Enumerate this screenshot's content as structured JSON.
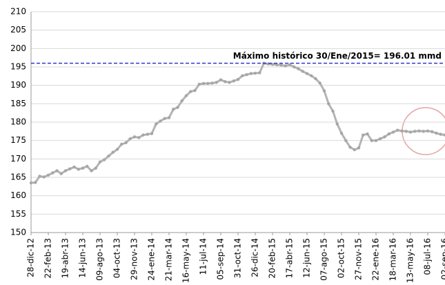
{
  "chart_data": {
    "type": "line",
    "categories": [
      "28-dic-12",
      null,
      null,
      null,
      "22-feb-13",
      null,
      null,
      null,
      "19-abr-13",
      null,
      null,
      null,
      "14-jun-13",
      null,
      null,
      null,
      "09-ago-13",
      null,
      null,
      null,
      "04-oct-13",
      null,
      null,
      null,
      "29-nov-13",
      null,
      null,
      null,
      "24-ene-14",
      null,
      null,
      null,
      "21-mar-14",
      null,
      null,
      null,
      "16-may-14",
      null,
      null,
      null,
      "11-jul-14",
      null,
      null,
      null,
      "05-sep-14",
      null,
      null,
      null,
      "31-oct-14",
      null,
      null,
      null,
      "26-dic-14",
      null,
      null,
      null,
      "20-feb-15",
      null,
      null,
      null,
      "17-abr-15",
      null,
      null,
      null,
      "12-jun-15",
      null,
      null,
      null,
      "07-ago-15",
      null,
      null,
      null,
      "02-oct-15",
      null,
      null,
      null,
      "27-nov-15",
      null,
      null,
      null,
      "22-ene-16",
      null,
      null,
      null,
      "18-mar-16",
      null,
      null,
      null,
      "13-may-16",
      null,
      null,
      null,
      "08-jul-16",
      null,
      null,
      null,
      "02-sep-16"
    ],
    "values": [
      163.5,
      163.6,
      165.3,
      165.1,
      165.6,
      166.2,
      166.8,
      166.0,
      166.8,
      167.3,
      167.8,
      167.2,
      167.5,
      168.0,
      166.8,
      167.5,
      169.2,
      169.8,
      170.8,
      171.8,
      172.6,
      174.0,
      174.4,
      175.5,
      176.0,
      175.8,
      176.5,
      176.7,
      176.9,
      179.5,
      180.3,
      181.0,
      181.2,
      183.5,
      184.0,
      185.8,
      187.2,
      188.3,
      188.6,
      190.3,
      190.5,
      190.5,
      190.6,
      190.8,
      191.5,
      191.0,
      190.8,
      191.2,
      191.6,
      192.6,
      192.9,
      193.2,
      193.3,
      193.4,
      196.0,
      195.8,
      195.7,
      195.6,
      195.5,
      195.3,
      195.6,
      195.0,
      194.5,
      193.8,
      193.2,
      192.6,
      191.8,
      190.6,
      188.5,
      185.0,
      183.0,
      179.5,
      177.0,
      175.0,
      173.2,
      172.5,
      173.0,
      176.5,
      176.8,
      175.0,
      175.0,
      175.5,
      176.0,
      176.8,
      177.3,
      177.8,
      177.6,
      177.5,
      177.3,
      177.5,
      177.6,
      177.5,
      177.6,
      177.4,
      177.0,
      176.7,
      176.5
    ],
    "color": "#b3b3b3",
    "ylim": [
      150,
      210
    ],
    "yticks": [
      150,
      155,
      160,
      165,
      170,
      175,
      180,
      185,
      190,
      195,
      200,
      205,
      210
    ],
    "grid": true,
    "reference_line": {
      "value": 196.01,
      "label": "Máximo histórico 30/Ene/2015= 196.01 mmd",
      "color": "#3333cc"
    }
  }
}
